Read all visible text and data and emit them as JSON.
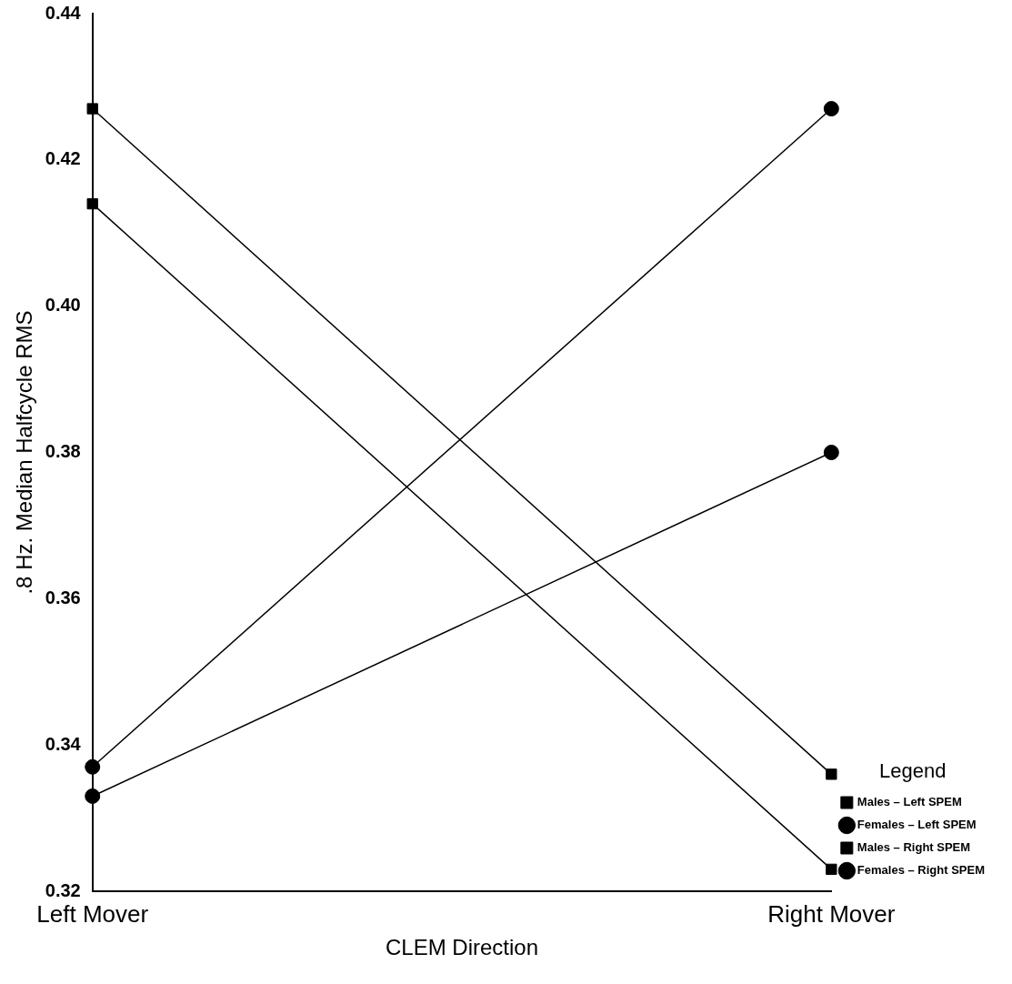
{
  "chart_data": {
    "type": "line",
    "xlabel": "CLEM Direction",
    "ylabel": ".8 Hz. Median Halfcycle RMS",
    "legend_title": "Legend",
    "categories": [
      "Left Mover",
      "Right Mover"
    ],
    "series": [
      {
        "name": "Males – Left SPEM",
        "color": "#000000",
        "marker": "square",
        "values": [
          0.427,
          0.336
        ]
      },
      {
        "name": "Females – Left SPEM",
        "color": "#000000",
        "marker": "circle",
        "values": [
          0.337,
          0.427
        ]
      },
      {
        "name": "Males – Right SPEM",
        "color": "#000000",
        "marker": "square",
        "values": [
          0.414,
          0.323
        ]
      },
      {
        "name": "Females – Right SPEM",
        "color": "#000000",
        "marker": "circle",
        "values": [
          0.333,
          0.38
        ]
      }
    ],
    "ylim": [
      0.32,
      0.44
    ],
    "yticks": [
      0.32,
      0.34,
      0.36,
      0.38,
      {
        "value": 0.4,
        "label": "0.40"
      },
      0.42,
      0.44
    ],
    "grid": false,
    "legend": "bottom right",
    "line_style": "solid"
  }
}
